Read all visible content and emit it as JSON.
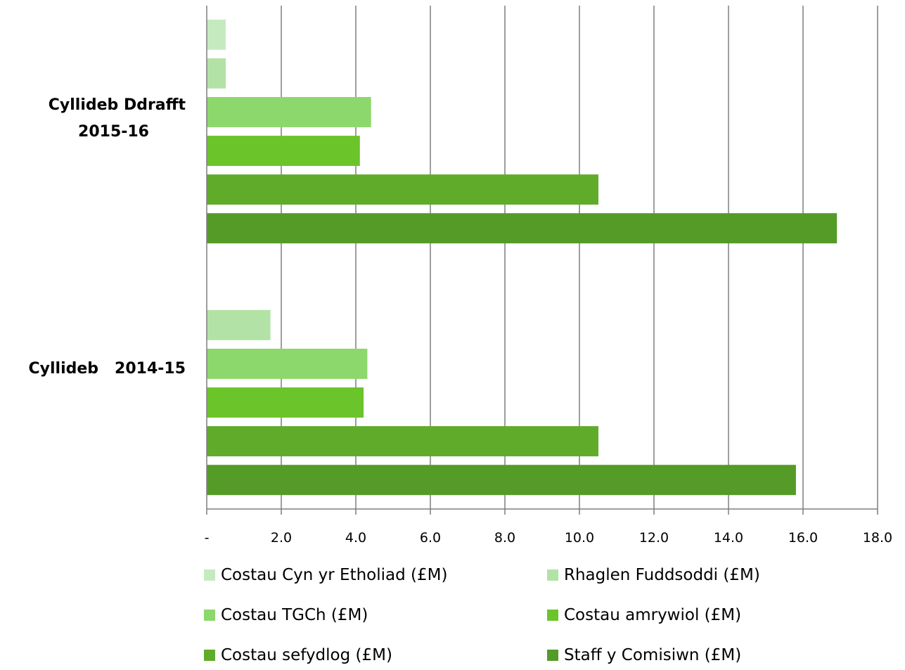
{
  "chart_data": {
    "type": "bar",
    "orientation": "horizontal",
    "categories": [
      "Cyllideb Ddrafft 2015-16",
      "Cyllideb   2014-15"
    ],
    "category_lines": [
      [
        "Cyllideb Ddrafft",
        "2015-16"
      ],
      [
        "Cyllideb   2014-15"
      ]
    ],
    "series": [
      {
        "name": "Costau Cyn yr Etholiad (£M)",
        "color": "#c6eac0",
        "values": [
          0.5,
          0
        ]
      },
      {
        "name": "Rhaglen Fuddsoddi (£M)",
        "color": "#b3e2a6",
        "values": [
          0.5,
          1.7
        ]
      },
      {
        "name": "Costau TGCh (£M)",
        "color": "#8dd86c",
        "values": [
          4.4,
          4.3
        ]
      },
      {
        "name": "Costau amrywiol (£M)",
        "color": "#6cc42b",
        "values": [
          4.1,
          4.2
        ]
      },
      {
        "name": "Costau sefydlog (£M)",
        "color": "#60ac2a",
        "values": [
          10.5,
          10.5
        ]
      },
      {
        "name": "Staff y Comisiwn (£M)",
        "color": "#559b27",
        "values": [
          16.9,
          15.8
        ]
      }
    ],
    "xlim": [
      0,
      18
    ],
    "x_ticks": [
      "-",
      "2.0",
      "4.0",
      "6.0",
      "8.0",
      "10.0",
      "12.0",
      "14.0",
      "16.0",
      "18.0"
    ],
    "grid": true,
    "legend_position": "bottom"
  }
}
